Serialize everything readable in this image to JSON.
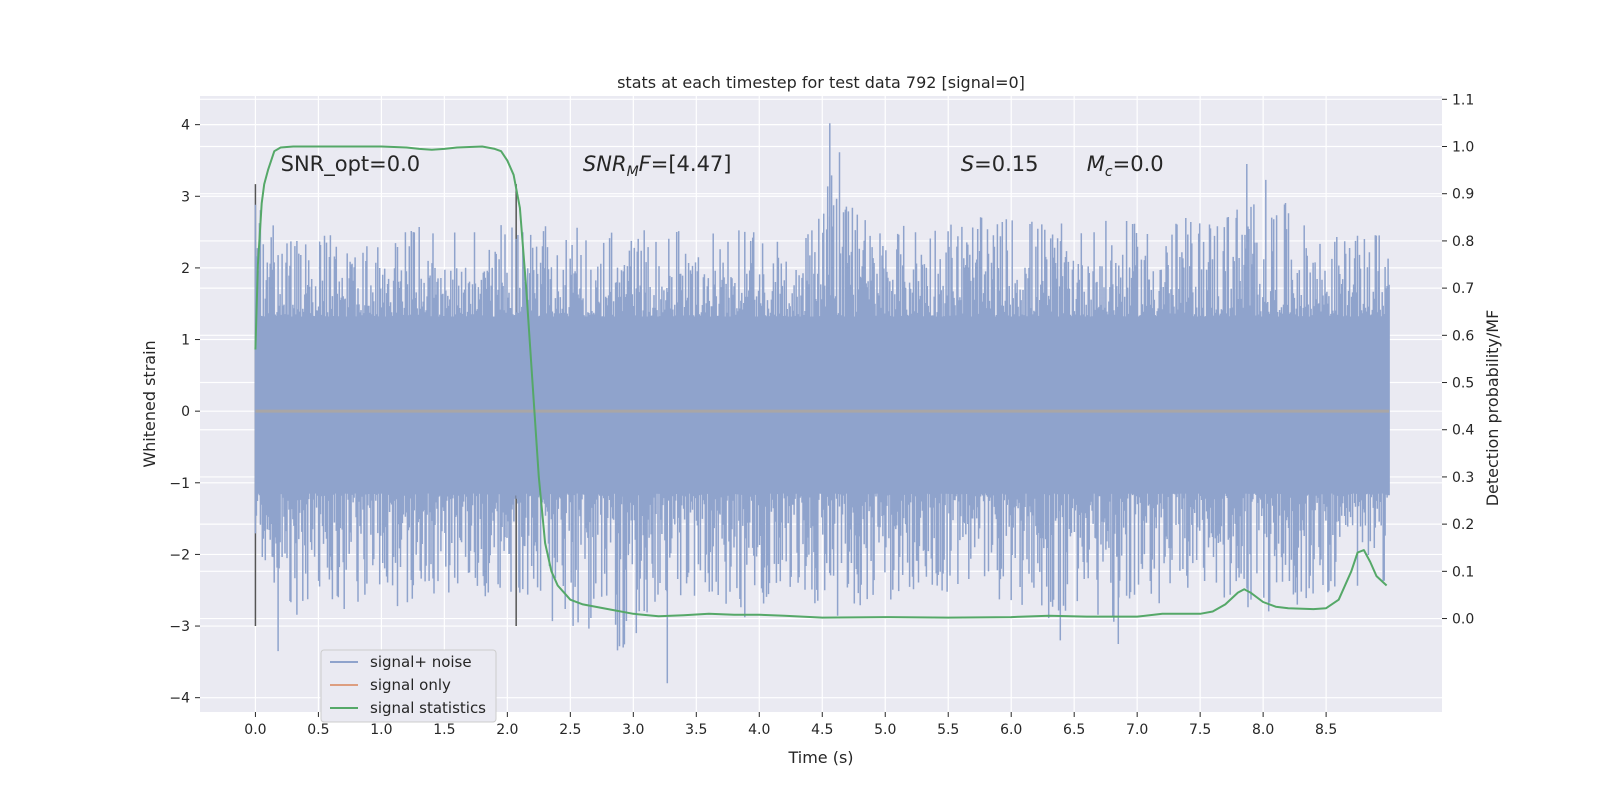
{
  "chart_data": {
    "type": "line",
    "title": "stats at each timestep for test data 792 [signal=0]",
    "xlabel": "Time (s)",
    "ylabel": "Whitened strain",
    "y2label": "Detection probability/MF",
    "xlim": [
      -0.44,
      9.42
    ],
    "ylim": [
      -4.2,
      4.4
    ],
    "y2lim": [
      -0.198,
      1.107
    ],
    "x_ticks": [
      0.0,
      0.5,
      1.0,
      1.5,
      2.0,
      2.5,
      3.0,
      3.5,
      4.0,
      4.5,
      5.0,
      5.5,
      6.0,
      6.5,
      7.0,
      7.5,
      8.0,
      8.5
    ],
    "x_tick_labels": [
      "0.0",
      "0.5",
      "1.0",
      "1.5",
      "2.0",
      "2.5",
      "3.0",
      "3.5",
      "4.0",
      "4.5",
      "5.0",
      "5.5",
      "6.0",
      "6.5",
      "7.0",
      "7.5",
      "8.0",
      "8.5"
    ],
    "y_ticks": [
      4,
      3,
      2,
      1,
      0,
      -1,
      -2,
      -3,
      -4
    ],
    "y_tick_labels": [
      "4",
      "3",
      "2",
      "1",
      "0",
      "−1",
      "−2",
      "−3",
      "−4"
    ],
    "y2_ticks": [
      1.1,
      1.0,
      0.9,
      0.8,
      0.7,
      0.6,
      0.5,
      0.4,
      0.3,
      0.2,
      0.1,
      0.0
    ],
    "y2_tick_labels": [
      "1.1",
      "1.0",
      "0.9",
      "0.8",
      "0.7",
      "0.6",
      "0.5",
      "0.4",
      "0.3",
      "0.2",
      "0.1",
      "0.0"
    ],
    "grid": true,
    "legend_position": "lower-left",
    "series": [
      {
        "name": "signal+ noise",
        "color": "#8fa3cc",
        "x_range": [
          0.0,
          9.0
        ],
        "envelope_upper": [
          3.08,
          2.45,
          2.6,
          2.5,
          2.45,
          2.75,
          2.55,
          2.65,
          2.75,
          2.6,
          2.9,
          2.6,
          2.95,
          2.55,
          2.75,
          2.6,
          2.65,
          2.55,
          2.6,
          4.02,
          2.8,
          2.7,
          2.85,
          2.9,
          2.8,
          2.95,
          2.75,
          2.7,
          2.8,
          2.75,
          2.8,
          2.9,
          3.12,
          3.45,
          2.8,
          2.6,
          2.55,
          2.7
        ],
        "envelope_lower": [
          -1.8,
          -3.35,
          -2.6,
          -3.05,
          -2.75,
          -3.0,
          -2.6,
          -2.8,
          -2.7,
          -2.75,
          -3.35,
          -3.3,
          -3.8,
          -3.0,
          -2.7,
          -2.8,
          -3.1,
          -2.85,
          -2.75,
          -3.15,
          -2.8,
          -2.75,
          -2.8,
          -2.7,
          -2.75,
          -2.9,
          -3.2,
          -2.85,
          -3.25,
          -2.9,
          -2.8,
          -2.75,
          -2.9,
          -3.0,
          -2.85,
          -2.7,
          -2.6,
          -2.5
        ],
        "core_band": [
          -1.15,
          1.32
        ],
        "spikes": [
          {
            "x": 4.56,
            "y": 4.02
          },
          {
            "x": 7.87,
            "y": 3.45
          },
          {
            "x": 3.27,
            "y": -3.8
          },
          {
            "x": 0.18,
            "y": -3.35
          },
          {
            "x": 2.92,
            "y": -3.3
          },
          {
            "x": 6.39,
            "y": -3.2
          },
          {
            "x": 6.85,
            "y": -3.25
          }
        ]
      },
      {
        "name": "signal only",
        "color": "#dd9e80",
        "x": [
          0.0,
          9.0
        ],
        "y": [
          0.0,
          0.0
        ]
      },
      {
        "name": "signal statistics",
        "color": "#55a868",
        "axis": "right",
        "x": [
          0.0,
          0.02,
          0.05,
          0.07,
          0.1,
          0.15,
          0.2,
          0.3,
          0.4,
          0.6,
          0.8,
          1.0,
          1.2,
          1.3,
          1.4,
          1.5,
          1.6,
          1.8,
          1.9,
          1.95,
          2.0,
          2.05,
          2.1,
          2.15,
          2.2,
          2.25,
          2.3,
          2.35,
          2.4,
          2.45,
          2.5,
          2.6,
          2.8,
          3.0,
          3.2,
          3.4,
          3.6,
          3.8,
          4.0,
          4.2,
          4.5,
          5.0,
          5.5,
          6.0,
          6.3,
          6.6,
          7.0,
          7.2,
          7.5,
          7.6,
          7.7,
          7.8,
          7.85,
          7.9,
          8.0,
          8.1,
          8.2,
          8.4,
          8.5,
          8.6,
          8.7,
          8.75,
          8.8,
          8.85,
          8.9,
          8.98
        ],
        "y": [
          0.57,
          0.75,
          0.88,
          0.92,
          0.95,
          0.99,
          0.998,
          1.0,
          1.0,
          1.0,
          1.0,
          1.0,
          0.998,
          0.995,
          0.993,
          0.995,
          0.998,
          1.0,
          0.995,
          0.99,
          0.97,
          0.94,
          0.87,
          0.7,
          0.5,
          0.3,
          0.16,
          0.1,
          0.07,
          0.055,
          0.04,
          0.03,
          0.02,
          0.01,
          0.005,
          0.007,
          0.01,
          0.008,
          0.008,
          0.006,
          0.002,
          0.003,
          0.002,
          0.003,
          0.006,
          0.004,
          0.004,
          0.01,
          0.01,
          0.015,
          0.03,
          0.055,
          0.062,
          0.055,
          0.035,
          0.025,
          0.022,
          0.02,
          0.022,
          0.04,
          0.1,
          0.14,
          0.145,
          0.12,
          0.09,
          0.07
        ]
      }
    ],
    "vertical_markers": [
      {
        "x": 0.0,
        "y_range": [
          -3.0,
          3.17
        ]
      },
      {
        "x": 2.07,
        "y_range": [
          -3.0,
          3.17
        ]
      }
    ],
    "annotations": [
      {
        "id": "snr-opt",
        "text": "SNR_opt=0.0",
        "x": 0.2,
        "y": 3.35
      },
      {
        "id": "snr-mf",
        "base": "SNR",
        "sub": "M",
        "tail": "F=[4.47]",
        "x": 2.6,
        "y": 3.35
      },
      {
        "id": "spin",
        "base": "S",
        "tail": "=0.15",
        "x": 5.6,
        "y": 3.35
      },
      {
        "id": "chirp-mass",
        "base": "M",
        "sub": "c",
        "tail": "=0.0",
        "x": 6.6,
        "y": 3.35
      }
    ]
  }
}
